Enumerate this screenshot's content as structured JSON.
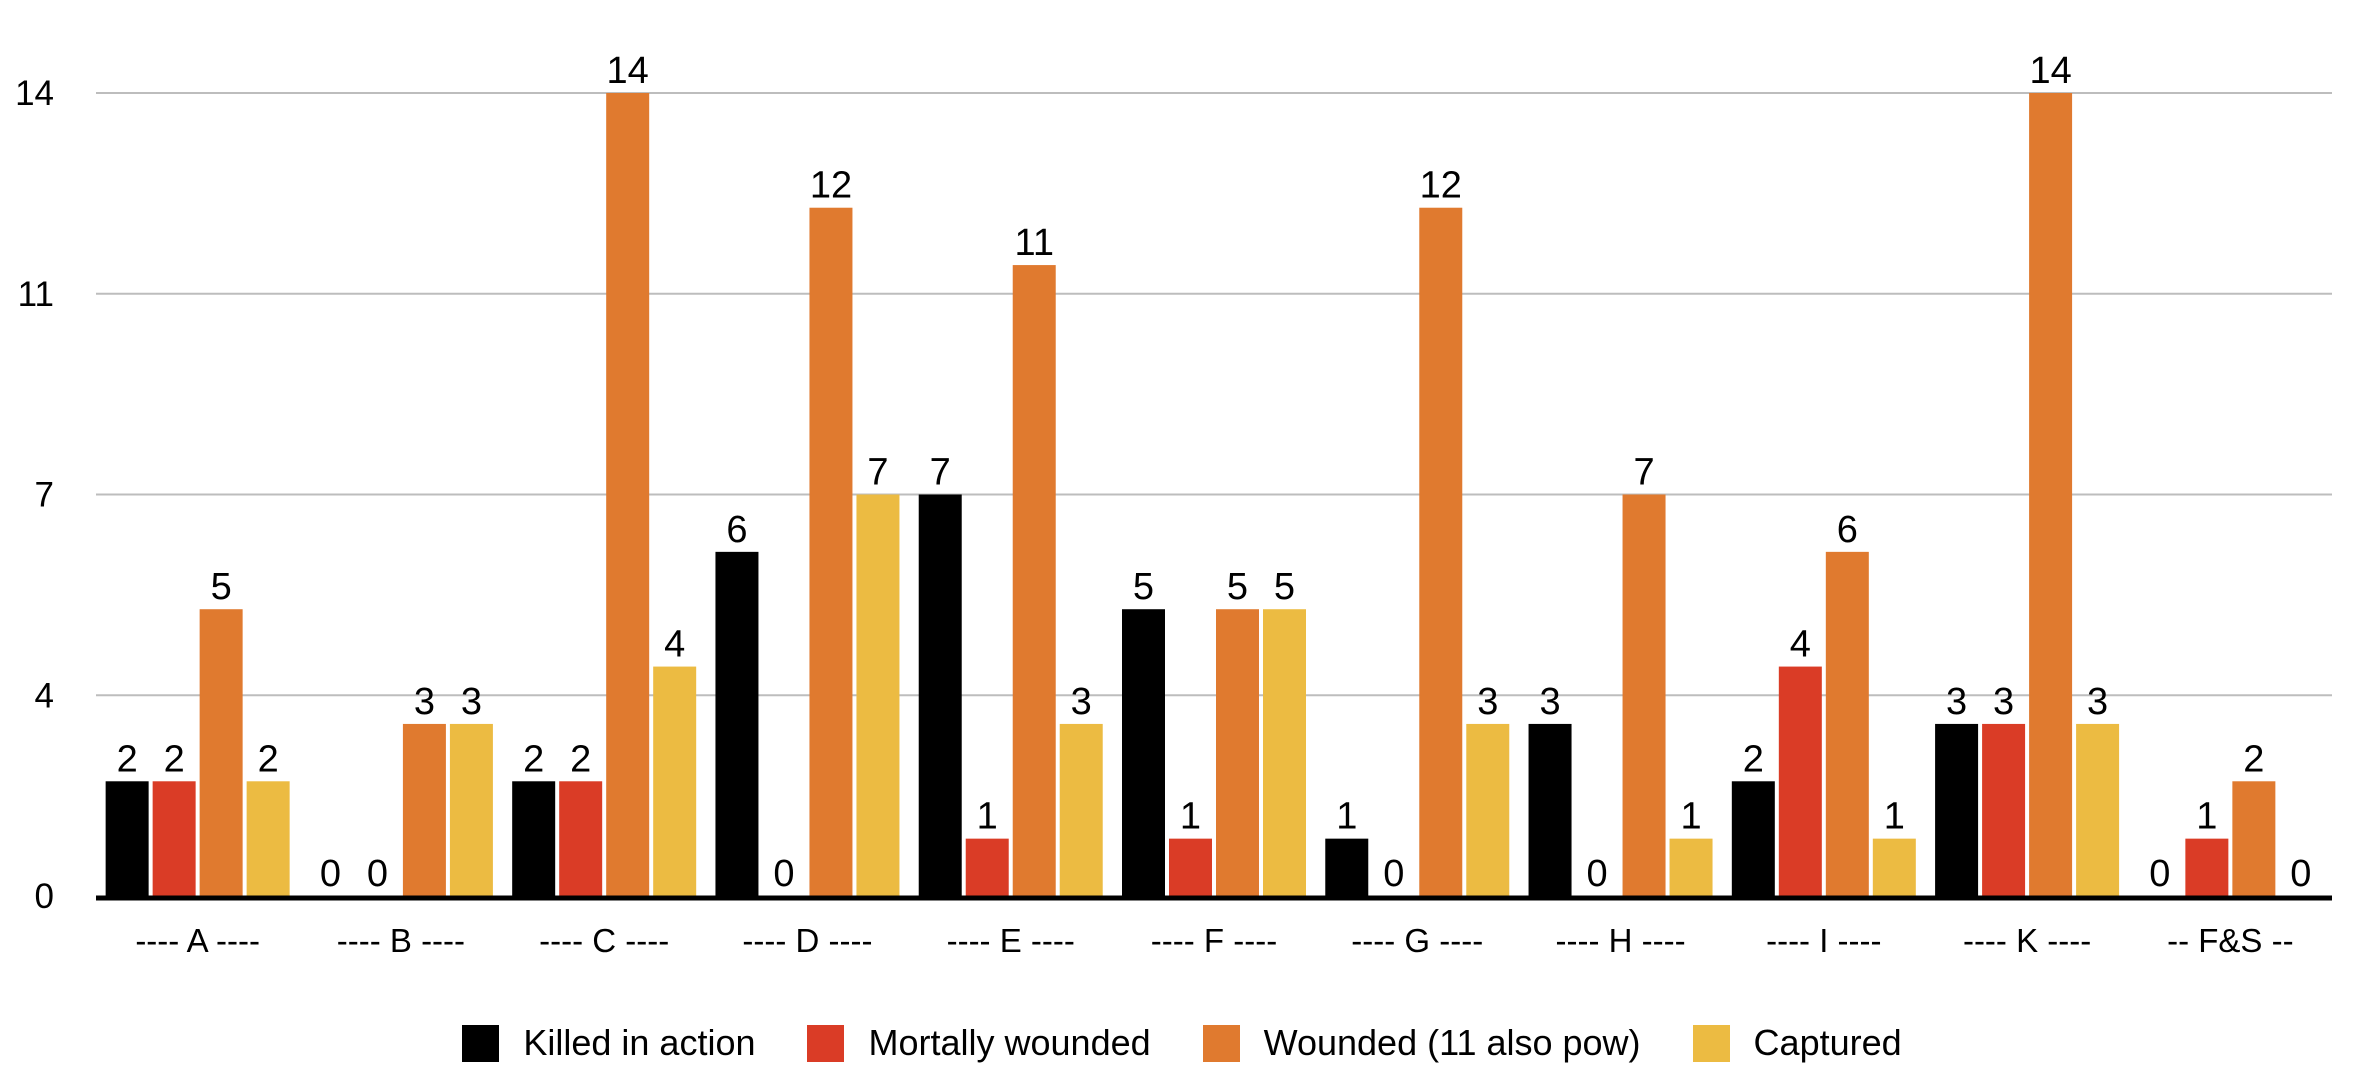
{
  "chart_data": {
    "type": "bar",
    "title": "",
    "xlabel": "",
    "ylabel": "",
    "ylim": [
      0,
      14
    ],
    "y_ticks": [
      {
        "value": 0,
        "label": "0"
      },
      {
        "value": 3.5,
        "label": "4"
      },
      {
        "value": 7,
        "label": "7"
      },
      {
        "value": 10.5,
        "label": "11"
      },
      {
        "value": 14,
        "label": "14"
      }
    ],
    "grid": true,
    "legend_position": "bottom-center",
    "categories": [
      "---- A ----",
      "---- B ----",
      "---- C ----",
      "---- D ----",
      "---- E ----",
      "---- F ----",
      "---- G ----",
      "---- H ----",
      "---- I ----",
      "---- K ----",
      "-- F&S --"
    ],
    "series": [
      {
        "name": "Killed in action",
        "color": "#000000",
        "values": [
          2,
          0,
          2,
          6,
          7,
          5,
          1,
          3,
          2,
          3,
          0
        ]
      },
      {
        "name": "Mortally wounded",
        "color": "#DA3C26",
        "values": [
          2,
          0,
          2,
          0,
          1,
          1,
          0,
          0,
          4,
          3,
          1
        ]
      },
      {
        "name": "Wounded (11 also pow)",
        "color": "#E07A2F",
        "values": [
          5,
          3,
          14,
          12,
          11,
          5,
          12,
          7,
          6,
          14,
          2
        ]
      },
      {
        "name": "Captured",
        "color": "#ECBB42",
        "values": [
          2,
          3,
          4,
          7,
          3,
          5,
          3,
          1,
          1,
          3,
          0
        ]
      }
    ],
    "data_labels": true
  },
  "legend": {
    "items": [
      {
        "label": "Killed in action",
        "color": "#000000"
      },
      {
        "label": "Mortally wounded",
        "color": "#DA3C26"
      },
      {
        "label": "Wounded (11 also pow)",
        "color": "#E07A2F"
      },
      {
        "label": "Captured",
        "color": "#ECBB42"
      }
    ]
  },
  "style": {
    "gridline_color": "#BDBDBD",
    "axis_color": "#000000"
  }
}
